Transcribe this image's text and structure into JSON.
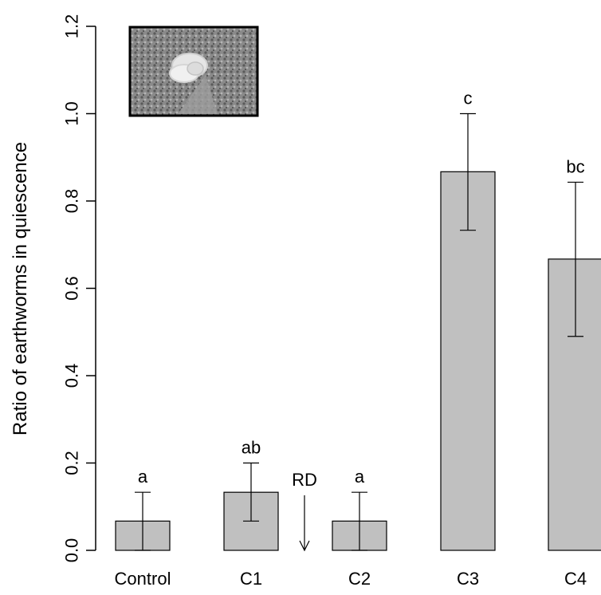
{
  "chart_data": {
    "type": "bar",
    "title": "",
    "xlabel": "",
    "ylabel": "Ratio of earthworms in quiescence",
    "ylim": [
      0,
      1.2
    ],
    "yticks": [
      0.0,
      0.2,
      0.4,
      0.6,
      0.8,
      1.0,
      1.2
    ],
    "ytick_labels": [
      "0.0",
      "0.2",
      "0.4",
      "0.6",
      "0.8",
      "1.0",
      "1.2"
    ],
    "categories": [
      "Control",
      "C1",
      "C2",
      "C3",
      "C4"
    ],
    "values": [
      0.067,
      0.133,
      0.067,
      0.867,
      0.667
    ],
    "error_low": [
      0.0,
      0.067,
      0.0,
      0.733,
      0.49
    ],
    "error_high": [
      0.133,
      0.2,
      0.133,
      1.0,
      0.843
    ],
    "significance_labels": [
      "a",
      "ab",
      "a",
      "c",
      "bc"
    ],
    "annotation": {
      "text": "RD",
      "between": [
        "C1",
        "C2"
      ],
      "arrow": "down"
    },
    "bar_color": "#c0c0c0",
    "grid": false,
    "inset_image": "earthworm-photo"
  }
}
